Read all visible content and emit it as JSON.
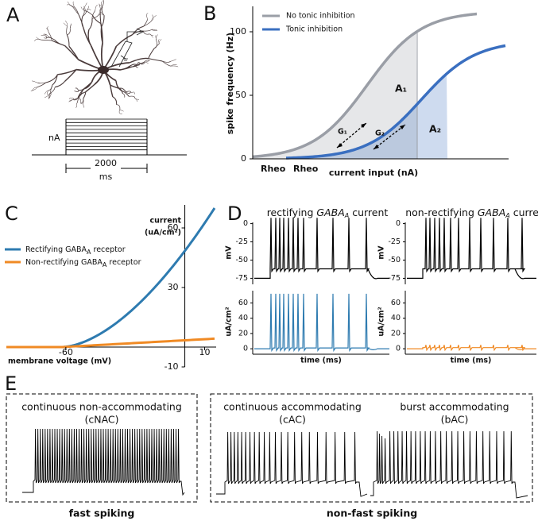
{
  "panels": {
    "A": {
      "label": "A",
      "amplitude_label": "nA",
      "duration": "2000",
      "duration_unit": "ms"
    },
    "B": {
      "label": "B",
      "ylabel": "spike frequency (Hz)",
      "xlabel": "current input (nA)",
      "ylim": [
        0,
        120
      ],
      "yticks": [
        0,
        50,
        100
      ],
      "legend": [
        {
          "name": "No tonic inhibition",
          "color": "#9a9ea6"
        },
        {
          "name": "Tonic inhibition",
          "color": "#3a6fc0"
        }
      ],
      "annotations": {
        "area_1": "A₁",
        "area_2": "A₂",
        "gain_1": "G₁",
        "gain_2": "G₂",
        "rheo_1": "Rheo",
        "rheo_2": "Rheo"
      }
    },
    "C": {
      "label": "C",
      "ylabel": [
        "current",
        "(uA/cm²)"
      ],
      "xlabel": "membrane voltage (mV)",
      "xlim": [
        -90,
        15
      ],
      "xticks": [
        -60,
        10
      ],
      "ylim": [
        -10,
        72
      ],
      "yticks": [
        -10,
        30,
        60
      ],
      "legend": [
        {
          "pre": "Rectifying ",
          "base": "GABA",
          "sub": "A",
          "post": " receptor",
          "color": "#2e7bb0"
        },
        {
          "pre": "Non-rectifying ",
          "base": "GABA",
          "sub": "A",
          "post": " receptor",
          "color": "#f08a24"
        }
      ]
    },
    "D": {
      "label": "D",
      "panels": [
        {
          "pre": "rectifying ",
          "base": "GABA",
          "sub": "A",
          "post": " current",
          "color": "#2e7bb0"
        },
        {
          "pre": "non-rectifying ",
          "base": "GABA",
          "sub": "A",
          "post": " current",
          "color": "#f08a24"
        }
      ],
      "voltage_label": "mV",
      "voltage_ylim": [
        -80,
        5
      ],
      "voltage_ticks": [
        0,
        -25,
        -50,
        -75
      ],
      "current_label": "uA/cm²",
      "current_ylim": [
        -3,
        75
      ],
      "current_ticks": [
        0,
        20,
        40,
        60
      ],
      "xlabel": "time (ms)"
    },
    "E": {
      "label": "E",
      "types": [
        {
          "name": "continuous non-accommodating",
          "abbr": "(cNAC)"
        },
        {
          "name": "continuous accommodating",
          "abbr": "(cAC)"
        },
        {
          "name": "burst accommodating",
          "abbr": "(bAC)"
        }
      ],
      "groups": [
        "fast spiking",
        "non-fast spiking"
      ]
    }
  }
}
